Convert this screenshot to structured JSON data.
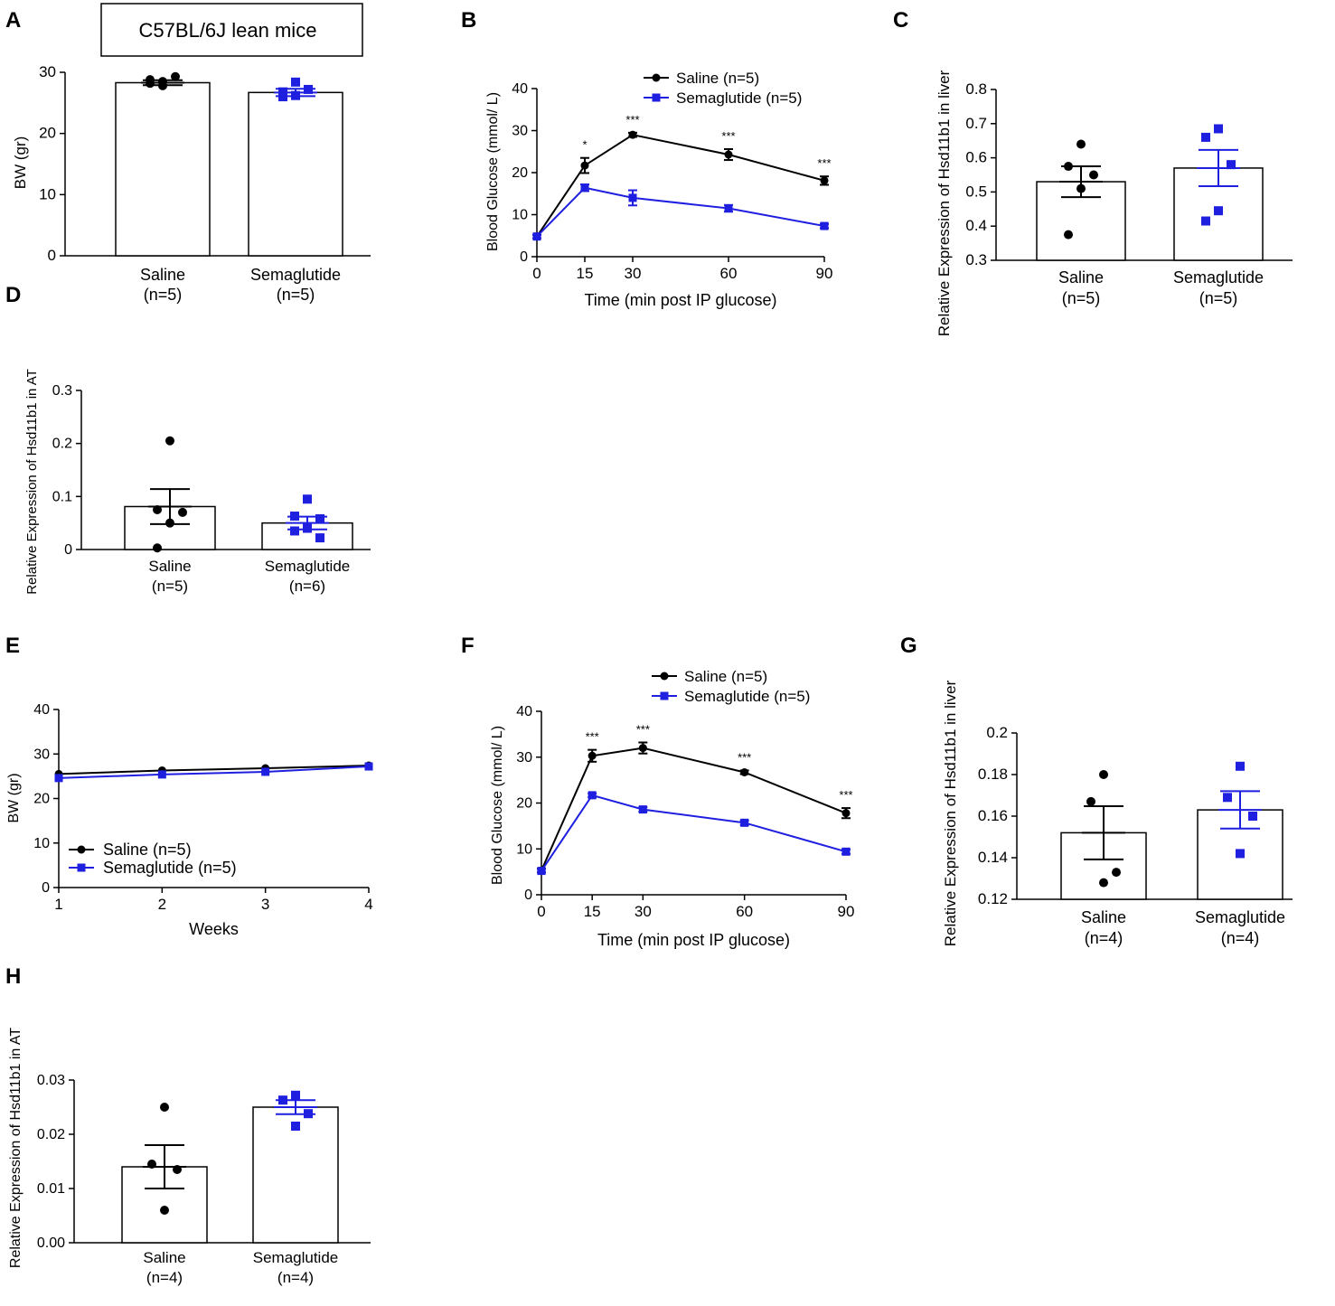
{
  "figure": {
    "header_box_label": "C57BL/6J  lean mice"
  },
  "colors": {
    "saline": "#000000",
    "semaglutide": "#1f1fe0"
  },
  "chart_data": [
    {
      "id": "A",
      "type": "bar",
      "panel_label": "A",
      "ylabel": "BW (gr)",
      "ylim": [
        0,
        30
      ],
      "yticks": [
        0,
        10,
        20,
        30
      ],
      "categories": [
        "Saline",
        "Semaglutide"
      ],
      "category_n": [
        "(n=5)",
        "(n=5)"
      ],
      "values": [
        28.3,
        26.7
      ],
      "sem": [
        0.4,
        0.6
      ],
      "points": [
        [
          28.5,
          28.8,
          29.3,
          27.8,
          28.2
        ],
        [
          28.4,
          26.0,
          27.2,
          26.2,
          26.8
        ]
      ]
    },
    {
      "id": "B",
      "type": "line",
      "panel_label": "B",
      "xlabel": "Time (min post IP glucose)",
      "ylabel": "Blood Glucose (mmol/ L)",
      "xlim": [
        0,
        90
      ],
      "ylim": [
        0,
        40
      ],
      "xticks": [
        0,
        15,
        30,
        60,
        90
      ],
      "yticks": [
        0,
        10,
        20,
        30,
        40
      ],
      "x": [
        0,
        15,
        30,
        60,
        90
      ],
      "series": [
        {
          "name": "Saline (n=5)",
          "values": [
            4.8,
            21.7,
            29.0,
            24.3,
            18.1
          ],
          "sem": [
            0.4,
            1.8,
            0.5,
            1.3,
            1.0
          ]
        },
        {
          "name": "Semaglutide (n=5)",
          "values": [
            4.8,
            16.4,
            14.0,
            11.5,
            7.3
          ],
          "sem": [
            0.4,
            0.8,
            1.8,
            0.8,
            0.5
          ]
        }
      ],
      "annotations": [
        "",
        "*",
        "***",
        "***",
        "***"
      ]
    },
    {
      "id": "C",
      "type": "bar",
      "panel_label": "C",
      "ylabel": "Relative Expression of Hsd11b1 in liver",
      "ylim": [
        0.3,
        0.8
      ],
      "yticks": [
        0.3,
        0.4,
        0.5,
        0.6,
        0.7,
        0.8
      ],
      "categories": [
        "Saline",
        "Semaglutide"
      ],
      "category_n": [
        "(n=5)",
        "(n=5)"
      ],
      "values": [
        0.53,
        0.57
      ],
      "sem": [
        0.045,
        0.053
      ],
      "points": [
        [
          0.64,
          0.575,
          0.55,
          0.51,
          0.375
        ],
        [
          0.685,
          0.66,
          0.58,
          0.445,
          0.415
        ]
      ]
    },
    {
      "id": "D",
      "type": "bar",
      "panel_label": "D",
      "ylabel": "Relative Expression of Hsd11b1 in AT",
      "ylim": [
        0.0,
        0.3
      ],
      "yticks": [
        0.0,
        0.1,
        0.2,
        0.3
      ],
      "categories": [
        "Saline",
        "Semaglutide"
      ],
      "category_n": [
        "(n=5)",
        "(n=6)"
      ],
      "values": [
        0.081,
        0.05
      ],
      "sem": [
        0.033,
        0.012
      ],
      "points": [
        [
          0.205,
          0.075,
          0.07,
          0.05,
          0.003
        ],
        [
          0.095,
          0.063,
          0.058,
          0.04,
          0.035,
          0.022
        ]
      ]
    },
    {
      "id": "E",
      "type": "line",
      "panel_label": "E",
      "xlabel": "Weeks",
      "ylabel": "BW (gr)",
      "xlim": [
        1,
        4
      ],
      "ylim": [
        0,
        40
      ],
      "xticks": [
        1,
        2,
        3,
        4
      ],
      "yticks": [
        0,
        10,
        20,
        30,
        40
      ],
      "x": [
        1,
        2,
        3,
        4
      ],
      "series": [
        {
          "name": "Saline (n=5)",
          "values": [
            25.5,
            26.3,
            26.8,
            27.4
          ]
        },
        {
          "name": "Semaglutide (n=5)",
          "values": [
            24.6,
            25.4,
            26.0,
            27.2
          ]
        }
      ]
    },
    {
      "id": "F",
      "type": "line",
      "panel_label": "F",
      "xlabel": "Time (min post IP glucose)",
      "ylabel": "Blood Glucose (mmol/ L)",
      "xlim": [
        0,
        90
      ],
      "ylim": [
        0,
        40
      ],
      "xticks": [
        0,
        15,
        30,
        60,
        90
      ],
      "yticks": [
        0,
        10,
        20,
        30,
        40
      ],
      "x": [
        0,
        15,
        30,
        60,
        90
      ],
      "series": [
        {
          "name": "Saline (n=5)",
          "values": [
            5.3,
            30.3,
            32.0,
            26.7,
            17.8
          ],
          "sem": [
            0.4,
            1.3,
            1.2,
            0.4,
            1.1
          ]
        },
        {
          "name": "Semaglutide (n=5)",
          "values": [
            5.2,
            21.7,
            18.6,
            15.7,
            9.4
          ],
          "sem": [
            0.4,
            0.4,
            0.5,
            0.5,
            0.5
          ]
        }
      ],
      "annotations": [
        "",
        "***",
        "***",
        "***",
        "***"
      ]
    },
    {
      "id": "G",
      "type": "bar",
      "panel_label": "G",
      "ylabel": "Relative Expression of Hsd11b1 in liver",
      "ylim": [
        0.12,
        0.2
      ],
      "yticks": [
        0.12,
        0.14,
        0.16,
        0.18,
        0.2
      ],
      "categories": [
        "Saline",
        "Semaglutide"
      ],
      "category_n": [
        "(n=4)",
        "(n=4)"
      ],
      "values": [
        0.152,
        0.163
      ],
      "sem": [
        0.0128,
        0.009
      ],
      "points": [
        [
          0.18,
          0.167,
          0.133,
          0.128
        ],
        [
          0.184,
          0.169,
          0.16,
          0.142
        ]
      ]
    },
    {
      "id": "H",
      "type": "bar",
      "panel_label": "H",
      "ylabel": "Relative Expression of Hsd11b1 in AT",
      "ylim": [
        0.0,
        0.03
      ],
      "yticks": [
        "0.00",
        "0.01",
        "0.02",
        "0.03"
      ],
      "categories": [
        "Saline",
        "Semaglutide"
      ],
      "category_n": [
        "(n=4)",
        "(n=4)"
      ],
      "values": [
        0.014,
        0.025
      ],
      "sem": [
        0.004,
        0.0013
      ],
      "points": [
        [
          0.025,
          0.0145,
          0.0135,
          0.006
        ],
        [
          0.0272,
          0.0263,
          0.0238,
          0.0215
        ]
      ]
    }
  ]
}
